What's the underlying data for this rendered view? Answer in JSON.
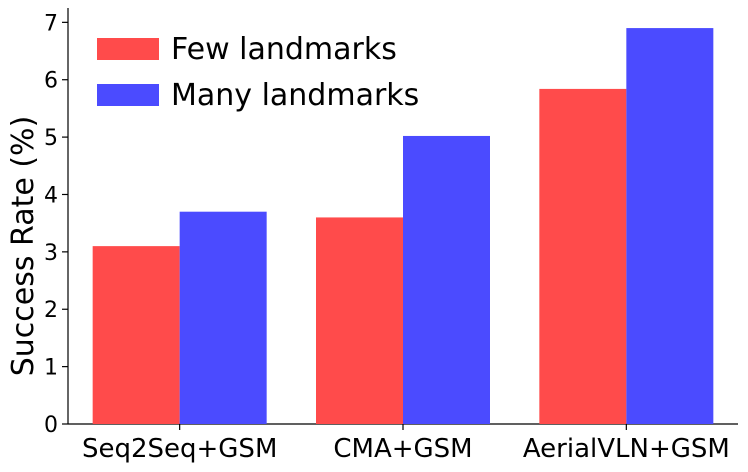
{
  "chart_data": {
    "type": "bar",
    "categories": [
      "Seq2Seq+GSM",
      "CMA+GSM",
      "AerialVLN+GSM"
    ],
    "series": [
      {
        "name": "Few landmarks",
        "values": [
          3.1,
          3.6,
          5.84
        ],
        "color": "#ff4b4b"
      },
      {
        "name": "Many landmarks",
        "values": [
          3.7,
          5.02,
          6.9
        ],
        "color": "#4b4bff"
      }
    ],
    "ylabel": "Success Rate (%)",
    "xlabel": "",
    "ylim": [
      0,
      7.25
    ],
    "yticks": [
      "0",
      "1",
      "2",
      "3",
      "4",
      "5",
      "6",
      "7"
    ],
    "grid": false,
    "legend_position": "top-left"
  }
}
